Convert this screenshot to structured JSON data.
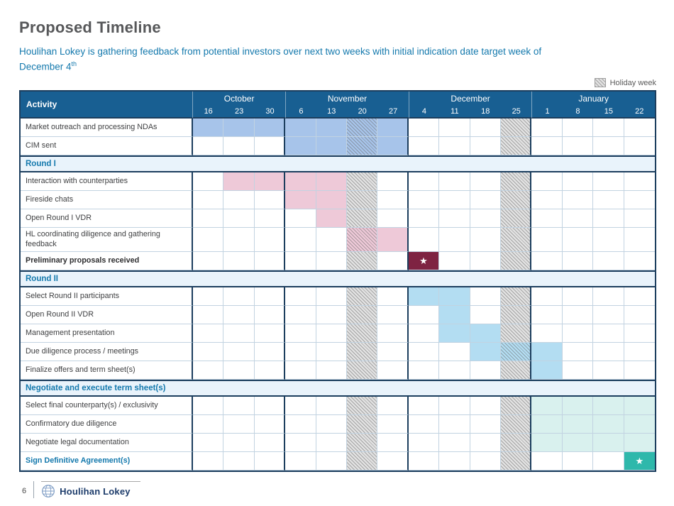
{
  "page": {
    "title": "Proposed Timeline",
    "subtitle_line1": "Houlihan Lokey is gathering feedback from potential investors over next two weeks with initial indication date target week of",
    "subtitle_line2": "December 4",
    "subtitle_sup": "th",
    "legend_label": "Holiday week",
    "page_number": "6",
    "brand": "Houlihan Lokey"
  },
  "icons": {
    "star": "★"
  },
  "colors": {
    "header_bg": "#185f92",
    "header_text": "#ffffff",
    "section_bg": "#e9f3fb",
    "accent_teal_text": "#1479ad",
    "title_text": "#57585a",
    "label_text": "#3f4042",
    "grid_line": "#c2d3e1",
    "frame_line": "#1c3e5e",
    "holiday_gray": "#e2e2e2",
    "bar_blue": "#a7c4ea",
    "bar_pink": "#eec9d8",
    "bar_maroon": "#7e2342",
    "bar_cyan": "#b3ddf2",
    "bar_mint": "#d9f1ee",
    "bar_teal": "#2eb8ab"
  },
  "chart_data": {
    "type": "table",
    "subtype": "gantt-timeline",
    "activity_header": "Activity",
    "months": [
      {
        "label": "October",
        "weeks": [
          "16",
          "23",
          "30"
        ]
      },
      {
        "label": "November",
        "weeks": [
          "6",
          "13",
          "20",
          "27"
        ]
      },
      {
        "label": "December",
        "weeks": [
          "4",
          "11",
          "18",
          "25"
        ]
      },
      {
        "label": "January",
        "weeks": [
          "1",
          "8",
          "15",
          "22"
        ]
      }
    ],
    "holiday_week_indices": [
      5,
      10
    ],
    "rows": [
      {
        "type": "task",
        "label": "Market outreach and processing NDAs",
        "bar": {
          "start": 0,
          "end": 6,
          "color": "bar_blue"
        }
      },
      {
        "type": "task",
        "label": "CIM sent",
        "bar": {
          "start": 3,
          "end": 6,
          "color": "bar_blue"
        }
      },
      {
        "type": "section",
        "label": "Round I"
      },
      {
        "type": "task",
        "label": "Interaction with counterparties",
        "bar": {
          "start": 1,
          "end": 4,
          "color": "bar_pink"
        }
      },
      {
        "type": "task",
        "label": "Fireside chats",
        "bar": {
          "start": 3,
          "end": 4,
          "color": "bar_pink"
        }
      },
      {
        "type": "task",
        "label": "Open Round I VDR",
        "bar": {
          "start": 4,
          "end": 4,
          "color": "bar_pink"
        }
      },
      {
        "type": "task",
        "label": "HL coordinating diligence and gathering feedback",
        "bar": {
          "start": 5,
          "end": 6,
          "color": "bar_pink"
        }
      },
      {
        "type": "task",
        "label": "Preliminary proposals received",
        "emphasis": "bold-dark",
        "bar": {
          "start": 7,
          "end": 7,
          "color": "bar_maroon",
          "star": true
        }
      },
      {
        "type": "section",
        "label": "Round II"
      },
      {
        "type": "task",
        "label": "Select Round II participants",
        "bar": {
          "start": 7,
          "end": 8,
          "color": "bar_cyan"
        }
      },
      {
        "type": "task",
        "label": "Open Round II VDR",
        "bar": {
          "start": 8,
          "end": 8,
          "color": "bar_cyan"
        }
      },
      {
        "type": "task",
        "label": "Management presentation",
        "bar": {
          "start": 8,
          "end": 9,
          "color": "bar_cyan"
        }
      },
      {
        "type": "task",
        "label": "Due diligence process / meetings",
        "bar": {
          "start": 9,
          "end": 11,
          "color": "bar_cyan"
        }
      },
      {
        "type": "task",
        "label": "Finalize offers and term sheet(s)",
        "bar": {
          "start": 11,
          "end": 11,
          "color": "bar_cyan"
        }
      },
      {
        "type": "section",
        "label": "Negotiate and execute term sheet(s)"
      },
      {
        "type": "task",
        "label": "Select final counterparty(s) / exclusivity",
        "bar": {
          "start": 11,
          "end": 14,
          "color": "bar_mint"
        }
      },
      {
        "type": "task",
        "label": "Confirmatory due diligence",
        "bar": {
          "start": 11,
          "end": 14,
          "color": "bar_mint"
        }
      },
      {
        "type": "task",
        "label": "Negotiate legal documentation",
        "bar": {
          "start": 11,
          "end": 14,
          "color": "bar_mint"
        }
      },
      {
        "type": "task",
        "label": "Sign Definitive Agreement(s)",
        "emphasis": "bold-teal",
        "bar": {
          "start": 14,
          "end": 14,
          "color": "bar_teal",
          "star": true
        }
      }
    ]
  }
}
